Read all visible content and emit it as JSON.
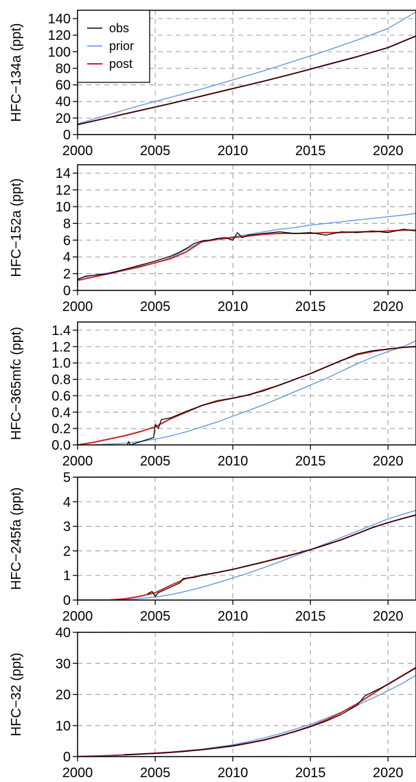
{
  "legend": {
    "placement": "top-left",
    "entries": [
      {
        "name": "obs",
        "color": "#000000"
      },
      {
        "name": "prior",
        "color": "#5b8ee6"
      },
      {
        "name": "post",
        "color": "#d42020"
      }
    ]
  },
  "chart_data": [
    {
      "type": "line",
      "ylabel": "HFC−134a (ppt)",
      "xlim": [
        2000,
        2021.8
      ],
      "ylim": [
        0,
        150
      ],
      "xticks": [
        2000,
        2005,
        2010,
        2015,
        2020
      ],
      "yticks": [
        0,
        20,
        40,
        60,
        80,
        100,
        120,
        140
      ],
      "grid": true,
      "series": [
        {
          "name": "obs",
          "x": [
            2000,
            2002,
            2004,
            2006,
            2008,
            2010,
            2012,
            2014,
            2016,
            2018,
            2020,
            2021.8
          ],
          "y": [
            12,
            20.5,
            29,
            37.5,
            46.5,
            55.5,
            64.5,
            74,
            84,
            94,
            105,
            119
          ]
        },
        {
          "name": "prior",
          "x": [
            2000,
            2002,
            2004,
            2006,
            2008,
            2010,
            2012,
            2014,
            2016,
            2018,
            2020,
            2021.8
          ],
          "y": [
            13,
            24,
            35,
            45,
            55,
            66,
            77,
            89,
            101,
            114,
            128,
            148
          ]
        },
        {
          "name": "post",
          "x": [
            2000,
            2002,
            2004,
            2006,
            2008,
            2010,
            2012,
            2014,
            2016,
            2018,
            2020,
            2021.8
          ],
          "y": [
            12,
            20.5,
            29,
            37.5,
            46.5,
            55.5,
            64.5,
            74,
            84,
            94,
            105,
            119
          ]
        }
      ]
    },
    {
      "type": "line",
      "ylabel": "HFC−152a (ppt)",
      "xlim": [
        2000,
        2021.8
      ],
      "ylim": [
        0,
        15
      ],
      "xticks": [
        2000,
        2005,
        2010,
        2015,
        2020
      ],
      "yticks": [
        0,
        2,
        4,
        6,
        8,
        10,
        12,
        14
      ],
      "grid": true,
      "series": [
        {
          "name": "obs",
          "x": [
            2000,
            2000.5,
            2001,
            2002,
            2003,
            2004,
            2005,
            2005.5,
            2006,
            2006.5,
            2007,
            2007.5,
            2008,
            2008.5,
            2009,
            2009.5,
            2010,
            2010.3,
            2010.6,
            2011,
            2012,
            2013,
            2014,
            2015,
            2016,
            2017,
            2018,
            2019,
            2020,
            2021,
            2021.8
          ],
          "y": [
            1.3,
            1.7,
            1.8,
            2.0,
            2.5,
            3.0,
            3.5,
            3.8,
            4.1,
            4.5,
            5.0,
            5.6,
            5.9,
            6.0,
            6.2,
            6.3,
            6.0,
            6.9,
            6.3,
            6.6,
            6.8,
            7.0,
            6.8,
            6.9,
            6.6,
            7.0,
            6.9,
            7.1,
            6.9,
            7.3,
            7.1
          ]
        },
        {
          "name": "prior",
          "x": [
            2000,
            2001,
            2002,
            2003,
            2004,
            2005,
            2006,
            2007,
            2008,
            2009,
            2010,
            2011,
            2012,
            2013,
            2014,
            2015,
            2016,
            2017,
            2018,
            2019,
            2020,
            2021,
            2021.8
          ],
          "y": [
            1.4,
            1.8,
            2.1,
            2.5,
            2.9,
            3.3,
            3.9,
            4.9,
            5.8,
            6.1,
            6.4,
            6.7,
            7.0,
            7.3,
            7.5,
            7.8,
            8.0,
            8.2,
            8.4,
            8.6,
            8.8,
            9.0,
            9.2
          ]
        },
        {
          "name": "post",
          "x": [
            2000,
            2001,
            2002,
            2003,
            2004,
            2005,
            2006,
            2007,
            2008,
            2009,
            2010,
            2011,
            2012,
            2013,
            2014,
            2015,
            2016,
            2017,
            2018,
            2019,
            2020,
            2021,
            2021.8
          ],
          "y": [
            1.2,
            1.6,
            2.0,
            2.4,
            2.8,
            3.3,
            3.8,
            4.6,
            5.8,
            6.1,
            6.3,
            6.5,
            6.7,
            6.8,
            6.8,
            6.8,
            6.9,
            6.9,
            7.0,
            7.0,
            7.1,
            7.2,
            7.2
          ]
        }
      ]
    },
    {
      "type": "line",
      "ylabel": "HFC−365mfc (ppt)",
      "xlim": [
        2000,
        2021.8
      ],
      "ylim": [
        0,
        1.5
      ],
      "xticks": [
        2000,
        2005,
        2010,
        2015,
        2020
      ],
      "yticks": [
        0.0,
        0.2,
        0.4,
        0.6,
        0.8,
        1.0,
        1.2,
        1.4
      ],
      "ytick_labels": [
        "0.0",
        "0.2",
        "0.4",
        "0.6",
        "0.8",
        "1.0",
        "1.2",
        "1.4"
      ],
      "grid": true,
      "series": [
        {
          "name": "obs",
          "x": [
            2003.2,
            2003.3,
            2003.4,
            2004.9,
            2005.0,
            2005.2,
            2005.4,
            2006,
            2007,
            2008,
            2009,
            2010,
            2011,
            2012,
            2013,
            2014,
            2015,
            2016,
            2017,
            2018,
            2019,
            2020,
            2021,
            2021.8
          ],
          "y": [
            0.0,
            0.04,
            0.0,
            0.09,
            0.25,
            0.2,
            0.31,
            0.33,
            0.41,
            0.48,
            0.53,
            0.57,
            0.61,
            0.66,
            0.73,
            0.8,
            0.87,
            0.95,
            1.03,
            1.11,
            1.15,
            1.17,
            1.19,
            1.2
          ]
        },
        {
          "name": "prior",
          "x": [
            2000,
            2001,
            2002,
            2003,
            2004,
            2005,
            2006,
            2007,
            2008,
            2009,
            2010,
            2011,
            2012,
            2013,
            2014,
            2015,
            2016,
            2017,
            2018,
            2019,
            2020,
            2021,
            2021.8
          ],
          "y": [
            0.0,
            0.0,
            0.01,
            0.02,
            0.04,
            0.07,
            0.11,
            0.16,
            0.22,
            0.28,
            0.35,
            0.42,
            0.49,
            0.57,
            0.65,
            0.73,
            0.81,
            0.9,
            0.99,
            1.07,
            1.14,
            1.2,
            1.27
          ]
        },
        {
          "name": "post",
          "x": [
            2000,
            2001,
            2002,
            2003,
            2004,
            2005,
            2006,
            2007,
            2008,
            2009,
            2010,
            2011,
            2012,
            2013,
            2014,
            2015,
            2016,
            2017,
            2018,
            2019,
            2020,
            2021,
            2021.8
          ],
          "y": [
            0.0,
            0.03,
            0.07,
            0.11,
            0.16,
            0.22,
            0.32,
            0.4,
            0.48,
            0.54,
            0.57,
            0.61,
            0.67,
            0.73,
            0.8,
            0.87,
            0.95,
            1.03,
            1.1,
            1.14,
            1.17,
            1.19,
            1.2
          ]
        }
      ]
    },
    {
      "type": "line",
      "ylabel": "HFC−245fa (ppt)",
      "xlim": [
        2000,
        2021.8
      ],
      "ylim": [
        0,
        5
      ],
      "xticks": [
        2000,
        2005,
        2010,
        2015,
        2020
      ],
      "yticks": [
        0,
        1,
        2,
        3,
        4,
        5
      ],
      "grid": true,
      "series": [
        {
          "name": "obs",
          "x": [
            2004.5,
            2004.8,
            2005.0,
            2005.2,
            2006.6,
            2006.8,
            2007.5,
            2008,
            2009,
            2010,
            2011,
            2012,
            2013,
            2014,
            2015,
            2016,
            2017,
            2018,
            2019,
            2020,
            2021,
            2021.8
          ],
          "y": [
            0.25,
            0.35,
            0.15,
            0.3,
            0.7,
            0.88,
            0.92,
            1.02,
            1.12,
            1.25,
            1.4,
            1.55,
            1.7,
            1.87,
            2.05,
            2.25,
            2.45,
            2.7,
            2.95,
            3.15,
            3.33,
            3.45
          ]
        },
        {
          "name": "prior",
          "x": [
            2000,
            2002,
            2003,
            2004,
            2005,
            2006,
            2007,
            2008,
            2009,
            2010,
            2011,
            2012,
            2013,
            2014,
            2015,
            2016,
            2017,
            2018,
            2019,
            2020,
            2021,
            2021.8
          ],
          "y": [
            0.0,
            0.0,
            0.02,
            0.06,
            0.12,
            0.22,
            0.36,
            0.52,
            0.7,
            0.9,
            1.1,
            1.32,
            1.55,
            1.8,
            2.05,
            2.3,
            2.55,
            2.8,
            3.05,
            3.3,
            3.5,
            3.65
          ]
        },
        {
          "name": "post",
          "x": [
            2000,
            2002,
            2003,
            2004,
            2005,
            2006,
            2007,
            2008,
            2009,
            2010,
            2011,
            2012,
            2013,
            2014,
            2015,
            2016,
            2017,
            2018,
            2019,
            2020,
            2021,
            2021.8
          ],
          "y": [
            0.0,
            0.0,
            0.05,
            0.15,
            0.3,
            0.6,
            0.88,
            1.0,
            1.12,
            1.25,
            1.4,
            1.55,
            1.72,
            1.88,
            2.05,
            2.25,
            2.46,
            2.7,
            2.95,
            3.15,
            3.33,
            3.47
          ]
        }
      ]
    },
    {
      "type": "line",
      "ylabel": "HFC−32 (ppt)",
      "xlim": [
        2000,
        2021.8
      ],
      "ylim": [
        0,
        40
      ],
      "xticks": [
        2000,
        2005,
        2010,
        2015,
        2020
      ],
      "yticks": [
        0,
        10,
        20,
        30,
        40
      ],
      "grid": true,
      "series": [
        {
          "name": "obs",
          "x": [
            2003,
            2004,
            2005,
            2006,
            2007,
            2008,
            2009,
            2010,
            2011,
            2012,
            2013,
            2014,
            2015,
            2016,
            2017,
            2018,
            2018.5,
            2019,
            2020,
            2021,
            2021.8
          ],
          "y": [
            0.6,
            0.8,
            1.0,
            1.3,
            1.7,
            2.2,
            2.8,
            3.5,
            4.4,
            5.4,
            6.7,
            8.0,
            9.6,
            11.4,
            13.6,
            16.5,
            19.5,
            20.8,
            23.2,
            26.2,
            28.5
          ]
        },
        {
          "name": "prior",
          "x": [
            2000,
            2002,
            2004,
            2006,
            2008,
            2010,
            2011,
            2012,
            2013,
            2014,
            2015,
            2016,
            2017,
            2018,
            2019,
            2020,
            2021,
            2021.8
          ],
          "y": [
            0.1,
            0.4,
            0.9,
            1.5,
            2.4,
            3.8,
            4.8,
            6.0,
            7.3,
            8.8,
            10.4,
            12.3,
            14.3,
            16.5,
            18.8,
            21.2,
            23.8,
            26.2
          ]
        },
        {
          "name": "post",
          "x": [
            2000,
            2002,
            2004,
            2006,
            2008,
            2010,
            2011,
            2012,
            2013,
            2014,
            2015,
            2016,
            2017,
            2018,
            2019,
            2020,
            2021,
            2021.8
          ],
          "y": [
            0.0,
            0.3,
            0.8,
            1.4,
            2.2,
            3.4,
            4.3,
            5.3,
            6.6,
            8.1,
            9.8,
            11.8,
            14.2,
            17.0,
            20.2,
            23.4,
            26.3,
            28.7
          ]
        }
      ]
    }
  ]
}
